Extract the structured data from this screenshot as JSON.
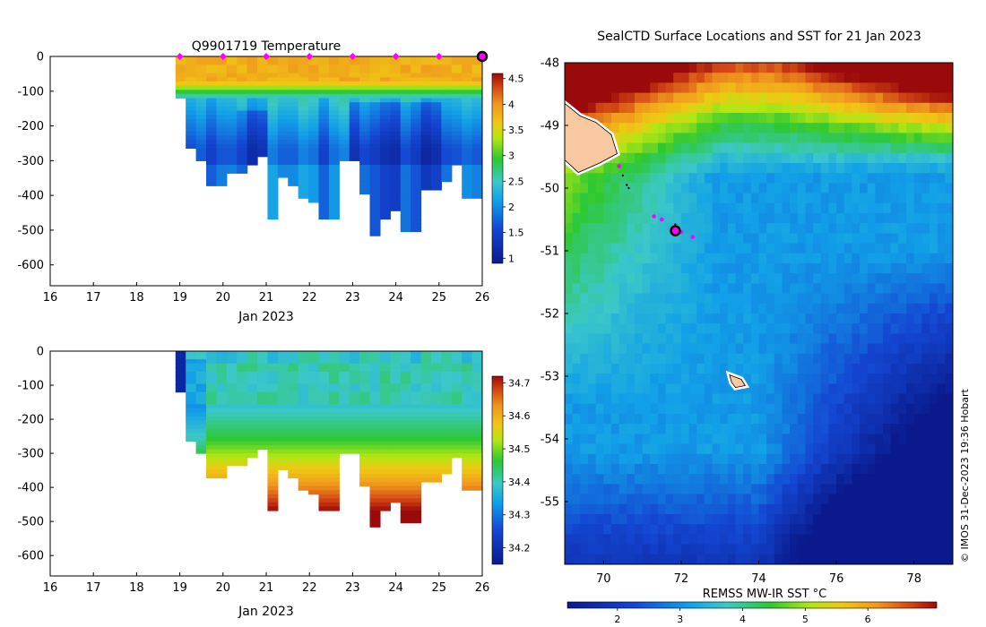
{
  "figure": {
    "credit": "© IMOS 31-Dec-2023 19:36 Hobart"
  },
  "chart_data": [
    {
      "id": "temperature-section",
      "type": "heatmap",
      "title": "Q9901719  Temperature",
      "xlabel": "Jan 2023",
      "ylabel": "",
      "xlim": [
        16,
        26
      ],
      "ylim": [
        -660,
        0
      ],
      "xticks": [
        "16",
        "17",
        "18",
        "19",
        "20",
        "21",
        "22",
        "23",
        "24",
        "25",
        "26"
      ],
      "yticks": [
        "0",
        "-100",
        "-200",
        "-300",
        "-400",
        "-500",
        "-600"
      ],
      "colorbar": {
        "ticks": [
          "1",
          "1.5",
          "2",
          "2.5",
          "3",
          "3.5",
          "4",
          "4.5"
        ],
        "range": [
          0.9,
          4.6
        ]
      },
      "profile_days": [
        19,
        20,
        21,
        22,
        23,
        24,
        25
      ],
      "current_day": 26,
      "max_depth_m": [
        120,
        260,
        290,
        365,
        365,
        335,
        335,
        310,
        285,
        460,
        340,
        370,
        400,
        410,
        460,
        460,
        300,
        300,
        395,
        505,
        460,
        440,
        500,
        500,
        380,
        380,
        360,
        310,
        400,
        400
      ],
      "colors": {
        "marker": "#ff00ff",
        "current": "#000000"
      }
    },
    {
      "id": "salinity-section",
      "type": "heatmap",
      "title": "",
      "xlabel": "Jan 2023",
      "ylabel": "",
      "xlim": [
        16,
        26
      ],
      "ylim": [
        -660,
        0
      ],
      "xticks": [
        "16",
        "17",
        "18",
        "19",
        "20",
        "21",
        "22",
        "23",
        "24",
        "25",
        "26"
      ],
      "yticks": [
        "0",
        "-100",
        "-200",
        "-300",
        "-400",
        "-500",
        "-600"
      ],
      "colorbar": {
        "ticks": [
          "34.2",
          "34.3",
          "34.4",
          "34.5",
          "34.6",
          "34.7"
        ],
        "range": [
          34.15,
          34.72
        ]
      },
      "max_depth_m": [
        120,
        260,
        290,
        365,
        365,
        335,
        335,
        310,
        285,
        460,
        340,
        370,
        400,
        410,
        460,
        460,
        300,
        300,
        395,
        505,
        460,
        440,
        500,
        500,
        380,
        380,
        360,
        310,
        400,
        400
      ]
    },
    {
      "id": "sst-map",
      "type": "heatmap",
      "title": "SealCTD Surface Locations and SST for 21 Jan 2023",
      "xlabel": "",
      "ylabel": "",
      "xlim": [
        69,
        79
      ],
      "ylim": [
        -56,
        -48
      ],
      "xticks": [
        "70",
        "72",
        "74",
        "76",
        "78"
      ],
      "yticks": [
        "-48",
        "-49",
        "-50",
        "-51",
        "-52",
        "-53",
        "-54",
        "-55"
      ],
      "colorbar": {
        "label": "REMSS MW-IR SST °C",
        "ticks": [
          "2",
          "3",
          "4",
          "5",
          "6"
        ],
        "range": [
          1.2,
          7.1
        ]
      },
      "track": [
        [
          70.4,
          -49.65
        ],
        [
          70.5,
          -49.8
        ],
        [
          70.6,
          -49.95
        ],
        [
          70.65,
          -50.0
        ],
        [
          71.3,
          -50.45
        ],
        [
          71.5,
          -50.5
        ],
        [
          71.85,
          -50.58
        ],
        [
          72.0,
          -50.7
        ],
        [
          72.3,
          -50.78
        ]
      ],
      "surface_locations": [
        [
          70.4,
          -49.65
        ],
        [
          71.3,
          -50.45
        ],
        [
          71.5,
          -50.5
        ],
        [
          72.0,
          -50.7
        ],
        [
          72.3,
          -50.78
        ]
      ],
      "current_location": [
        71.85,
        -50.68
      ],
      "islands": [
        [
          [
            69.0,
            -48.65
          ],
          [
            69.4,
            -48.85
          ],
          [
            69.8,
            -48.95
          ],
          [
            70.2,
            -49.15
          ],
          [
            70.35,
            -49.45
          ],
          [
            69.9,
            -49.6
          ],
          [
            69.35,
            -49.75
          ],
          [
            69.0,
            -49.55
          ]
        ],
        [
          [
            73.25,
            -52.98
          ],
          [
            73.55,
            -53.05
          ],
          [
            73.65,
            -53.15
          ],
          [
            73.4,
            -53.18
          ],
          [
            73.3,
            -53.1
          ]
        ]
      ],
      "colors": {
        "land": "#f8c8a0",
        "marker": "#ff00ff",
        "current": "#000000"
      }
    }
  ]
}
